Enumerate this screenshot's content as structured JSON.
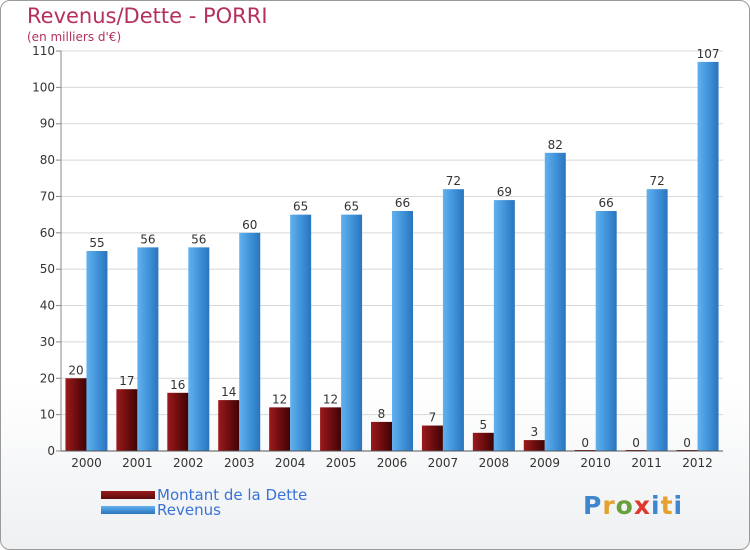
{
  "chart_data": {
    "type": "bar",
    "title": "Revenus/Dette - PORRI",
    "subtitle": "(en milliers d'€)",
    "categories": [
      "2000",
      "2001",
      "2002",
      "2003",
      "2004",
      "2005",
      "2006",
      "2007",
      "2008",
      "2009",
      "2010",
      "2011",
      "2012"
    ],
    "series": [
      {
        "name": "Montant de la Dette",
        "color": "#7a0e10",
        "values": [
          20,
          17,
          16,
          14,
          12,
          12,
          8,
          7,
          5,
          3,
          0,
          0,
          0
        ]
      },
      {
        "name": "Revenus",
        "color": "#4a9de0",
        "values": [
          55,
          56,
          56,
          60,
          65,
          65,
          66,
          72,
          69,
          82,
          66,
          72,
          107
        ]
      }
    ],
    "ylim": [
      0,
      110
    ],
    "yticks": [
      0,
      10,
      20,
      30,
      40,
      50,
      60,
      70,
      80,
      90,
      100,
      110
    ],
    "xlabel": "",
    "ylabel": "",
    "grid": true,
    "legend": "bottom-left"
  },
  "logo": {
    "text_chars": [
      "P",
      "r",
      "o",
      "x",
      "i",
      "t",
      "i"
    ]
  }
}
